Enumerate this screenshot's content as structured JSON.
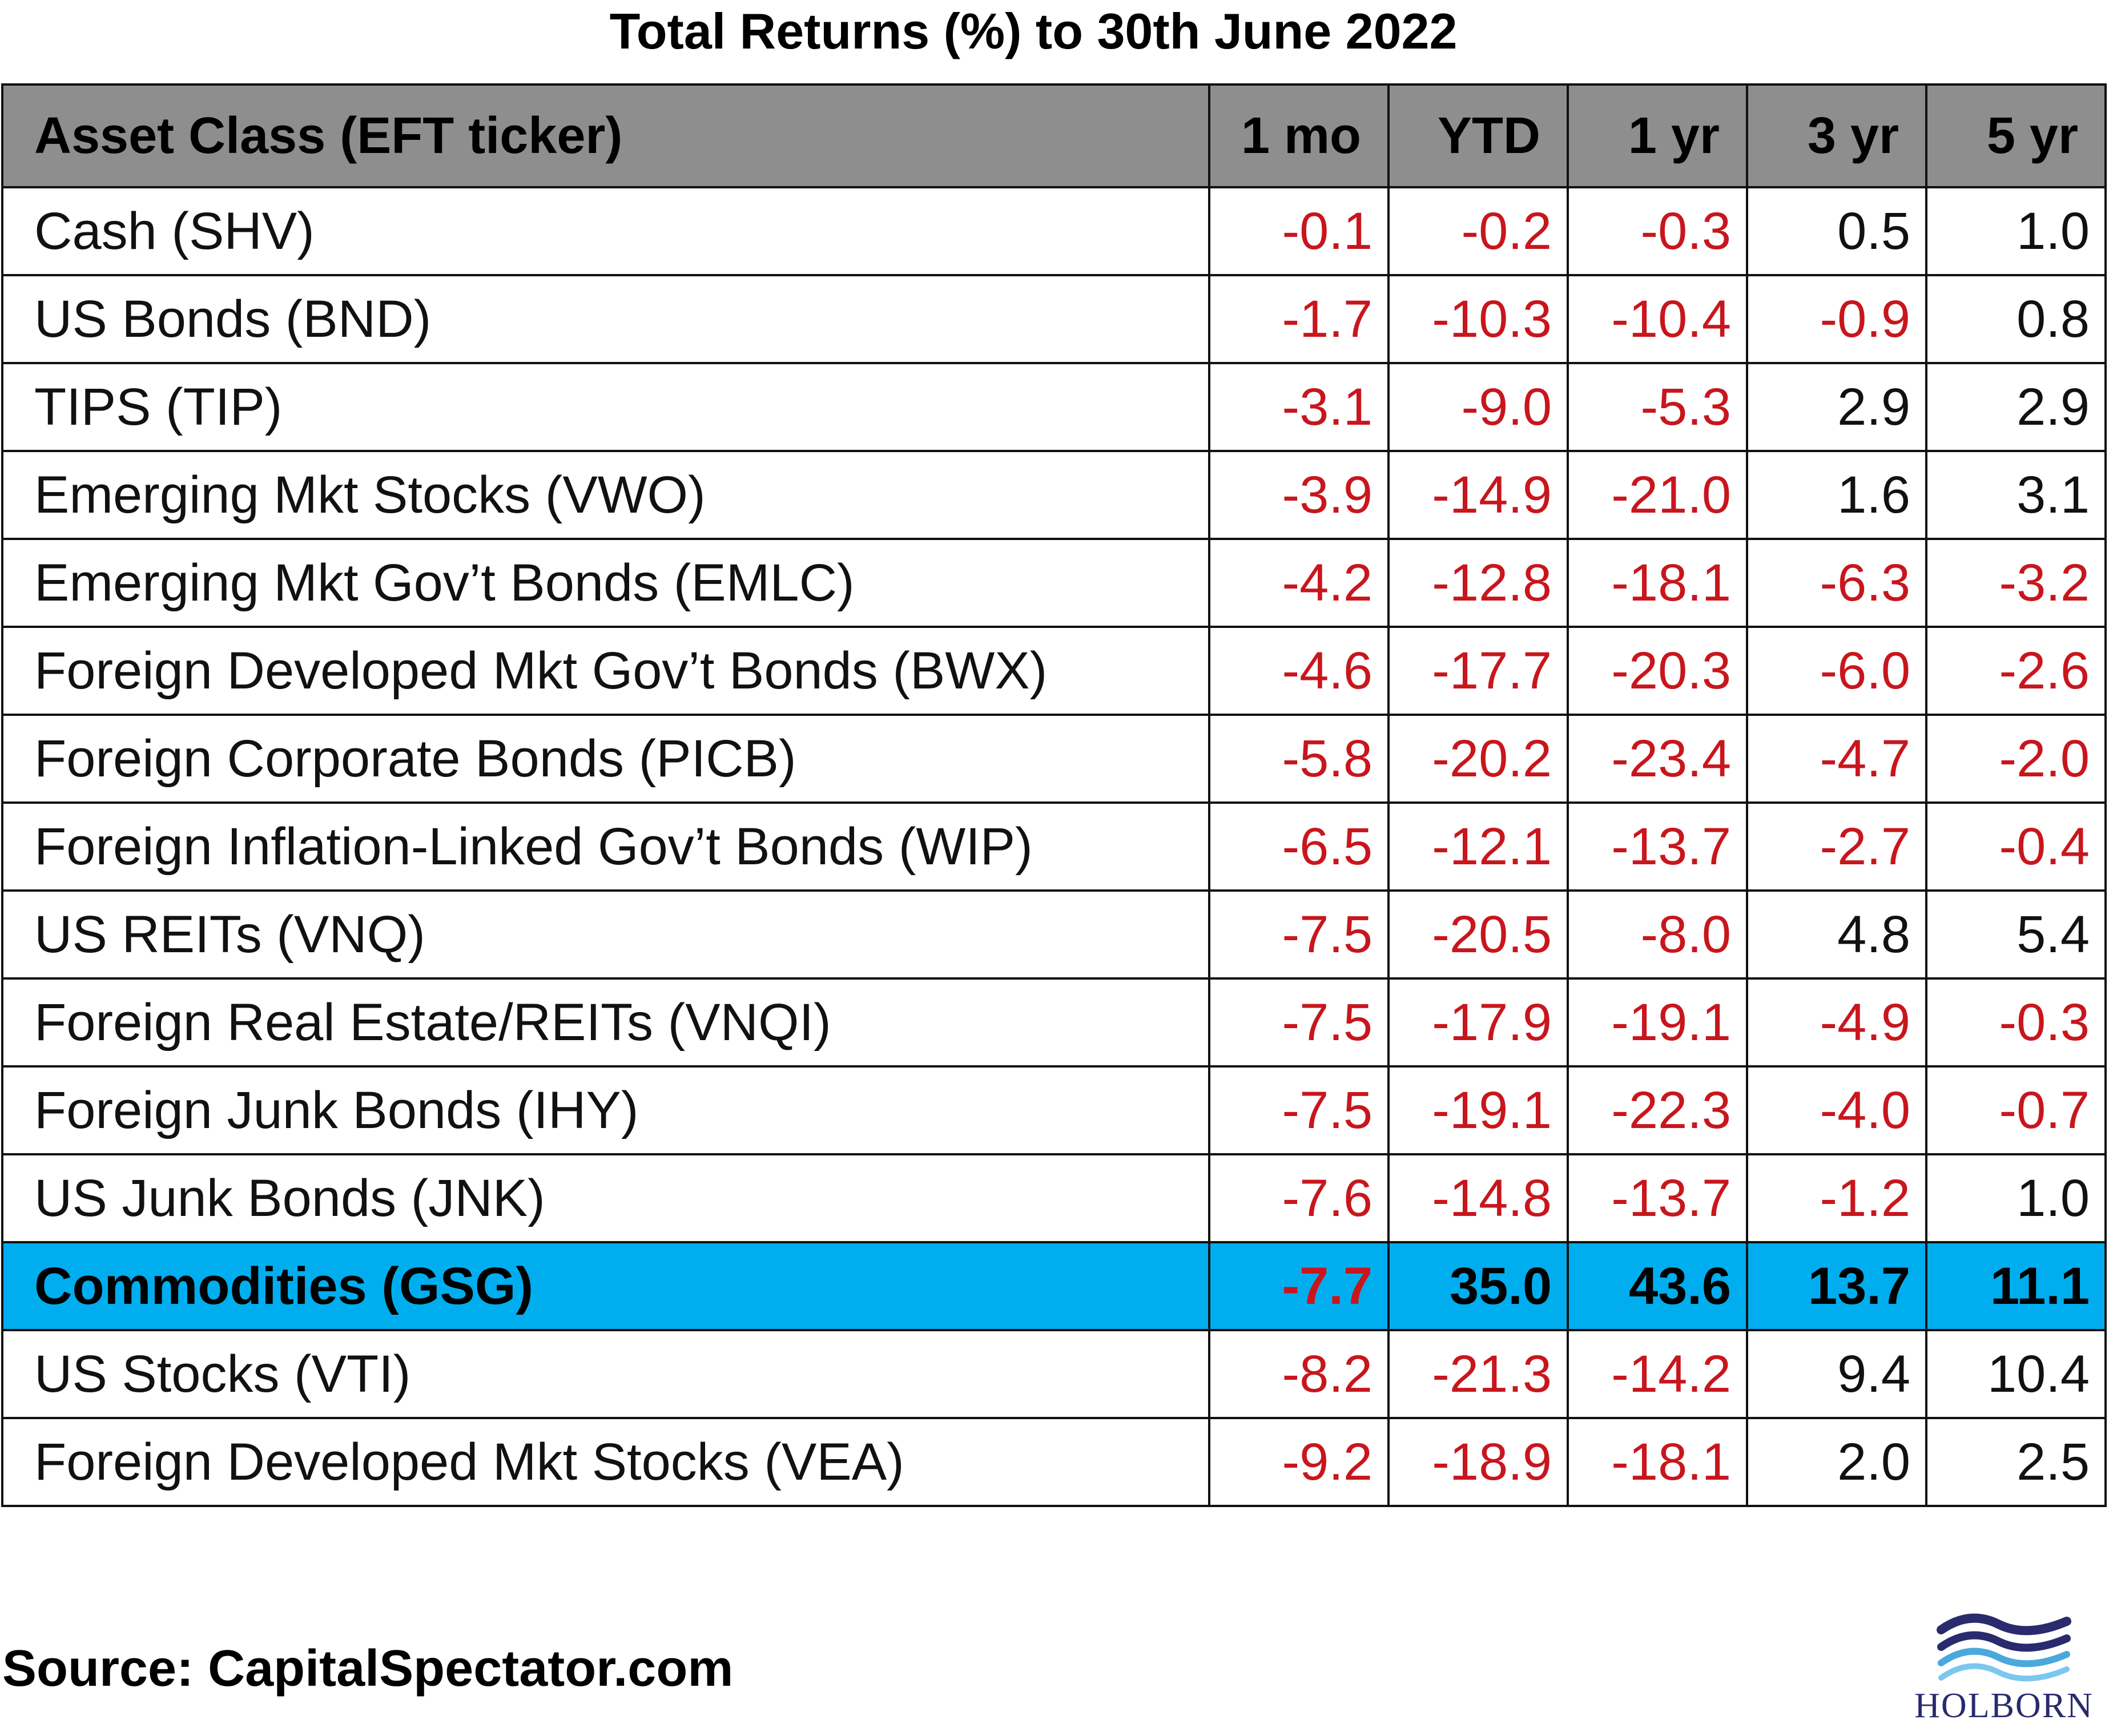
{
  "chart_data": {
    "type": "table",
    "title": "Total Returns (%) to 30th June 2022",
    "columns": [
      "Asset Class (EFT ticker)",
      "1 mo",
      "YTD",
      "1 yr",
      "3 yr",
      "5 yr"
    ],
    "rows": [
      {
        "asset": "Cash (SHV)",
        "values": [
          "-0.1",
          "-0.2",
          "-0.3",
          "0.5",
          "1.0"
        ],
        "highlight": false
      },
      {
        "asset": "US Bonds (BND)",
        "values": [
          "-1.7",
          "-10.3",
          "-10.4",
          "-0.9",
          "0.8"
        ],
        "highlight": false
      },
      {
        "asset": "TIPS (TIP)",
        "values": [
          "-3.1",
          "-9.0",
          "-5.3",
          "2.9",
          "2.9"
        ],
        "highlight": false
      },
      {
        "asset": "Emerging Mkt Stocks (VWO)",
        "values": [
          "-3.9",
          "-14.9",
          "-21.0",
          "1.6",
          "3.1"
        ],
        "highlight": false
      },
      {
        "asset": "Emerging Mkt Gov’t Bonds (EMLC)",
        "values": [
          "-4.2",
          "-12.8",
          "-18.1",
          "-6.3",
          "-3.2"
        ],
        "highlight": false
      },
      {
        "asset": "Foreign Developed Mkt Gov’t Bonds (BWX)",
        "values": [
          "-4.6",
          "-17.7",
          "-20.3",
          "-6.0",
          "-2.6"
        ],
        "highlight": false
      },
      {
        "asset": "Foreign Corporate Bonds (PICB)",
        "values": [
          "-5.8",
          "-20.2",
          "-23.4",
          "-4.7",
          "-2.0"
        ],
        "highlight": false
      },
      {
        "asset": "Foreign Inflation-Linked Gov’t Bonds (WIP)",
        "values": [
          "-6.5",
          "-12.1",
          "-13.7",
          "-2.7",
          "-0.4"
        ],
        "highlight": false
      },
      {
        "asset": "US REITs (VNQ)",
        "values": [
          "-7.5",
          "-20.5",
          "-8.0",
          "4.8",
          "5.4"
        ],
        "highlight": false
      },
      {
        "asset": "Foreign Real Estate/REITs (VNQI)",
        "values": [
          "-7.5",
          "-17.9",
          "-19.1",
          "-4.9",
          "-0.3"
        ],
        "highlight": false
      },
      {
        "asset": "Foreign Junk Bonds (IHY)",
        "values": [
          "-7.5",
          "-19.1",
          "-22.3",
          "-4.0",
          "-0.7"
        ],
        "highlight": false
      },
      {
        "asset": "US Junk Bonds (JNK)",
        "values": [
          "-7.6",
          "-14.8",
          "-13.7",
          "-1.2",
          "1.0"
        ],
        "highlight": false
      },
      {
        "asset": "Commodities (GSG)",
        "values": [
          "-7.7",
          "35.0",
          "43.6",
          "13.7",
          "11.1"
        ],
        "highlight": true
      },
      {
        "asset": "US Stocks (VTI)",
        "values": [
          "-8.2",
          "-21.3",
          "-14.2",
          "9.4",
          "10.4"
        ],
        "highlight": false
      },
      {
        "asset": "Foreign Developed Mkt Stocks (VEA)",
        "values": [
          "-9.2",
          "-18.9",
          "-18.1",
          "2.0",
          "2.5"
        ],
        "highlight": false
      }
    ]
  },
  "source": "Source: CapitalSpectator.com",
  "logo": {
    "text": "HOLBORN",
    "icon": "holborn-waves-logo"
  },
  "colors": {
    "header_bg": "#8e8e8e",
    "highlight_bg": "#00aeef",
    "negative": "#c8161d",
    "logo_dark": "#2a2a6e",
    "logo_light": "#4aa8dc"
  }
}
